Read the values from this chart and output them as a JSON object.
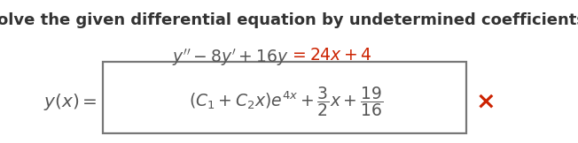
{
  "title": "Solve the given differential equation by undetermined coefficients.",
  "bg_color": "#ffffff",
  "title_color": "#333333",
  "dark_color": "#555555",
  "red_color": "#cc2200",
  "title_fontsize": 13.0,
  "eq_fontsize": 13.5,
  "ans_fontsize": 13.5,
  "x_color": "#cc2200"
}
